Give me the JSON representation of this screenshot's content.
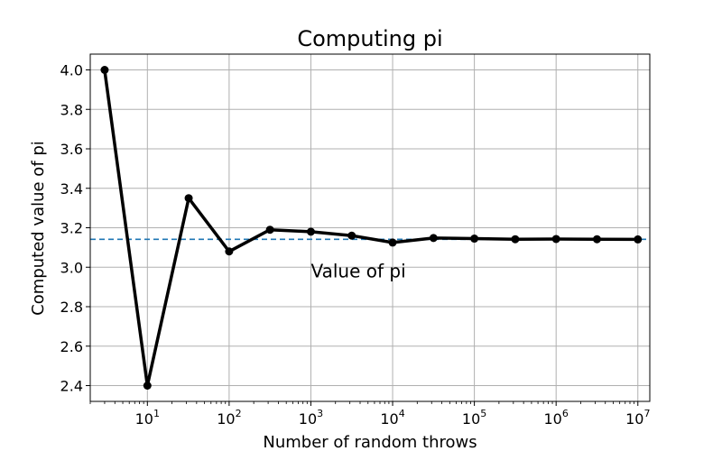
{
  "chart_data": {
    "type": "line",
    "title": "Computing pi",
    "xlabel": "Number of random throws",
    "ylabel": "Computed value of pi",
    "xscale": "log",
    "xlim": [
      2,
      14000000
    ],
    "ylim": [
      2.32,
      4.08
    ],
    "grid": true,
    "x_ticks": [
      {
        "base": "10",
        "exp": "1",
        "value": 10
      },
      {
        "base": "10",
        "exp": "2",
        "value": 100
      },
      {
        "base": "10",
        "exp": "3",
        "value": 1000
      },
      {
        "base": "10",
        "exp": "4",
        "value": 10000
      },
      {
        "base": "10",
        "exp": "5",
        "value": 100000
      },
      {
        "base": "10",
        "exp": "6",
        "value": 1000000
      },
      {
        "base": "10",
        "exp": "7",
        "value": 10000000
      }
    ],
    "y_ticks": [
      "2.4",
      "2.6",
      "2.8",
      "3.0",
      "3.2",
      "3.4",
      "3.6",
      "3.8",
      "4.0"
    ],
    "series": [
      {
        "x": [
          3,
          10,
          32,
          100,
          316,
          1000,
          3162,
          10000,
          31623,
          100000,
          316228,
          1000000,
          3162278,
          10000000
        ],
        "y": [
          4.0,
          2.4,
          3.35,
          3.08,
          3.19,
          3.18,
          3.16,
          3.125,
          3.148,
          3.145,
          3.142,
          3.143,
          3.142,
          3.141
        ],
        "color": "#000000",
        "marker": "circle"
      }
    ],
    "reference_line": {
      "y": 3.14159,
      "color": "#1f77b4",
      "style": "dashed"
    },
    "annotation": {
      "text": "Value of pi",
      "x": 1000,
      "y": 2.98
    }
  }
}
